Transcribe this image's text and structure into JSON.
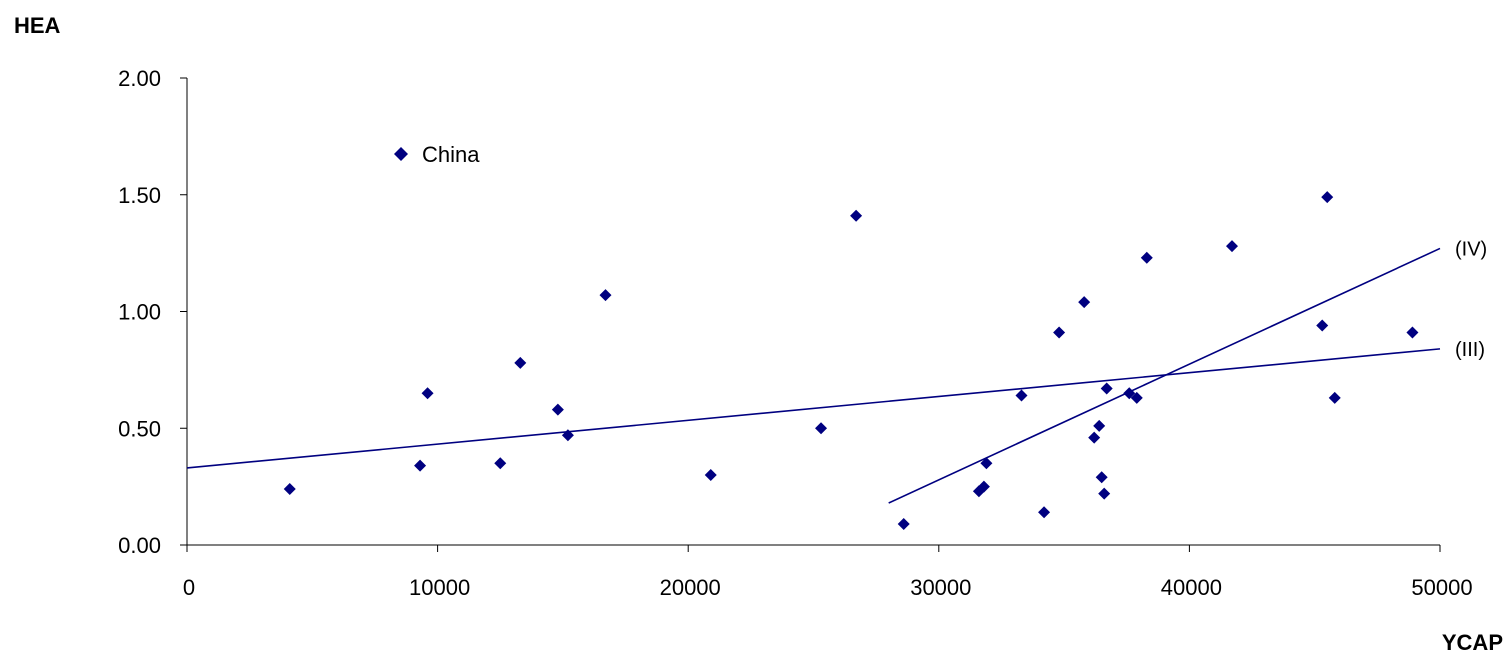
{
  "chart_data": {
    "type": "scatter",
    "xlabel": "YCAP",
    "ylabel": "HEA",
    "xlim": [
      0,
      50000
    ],
    "ylim": [
      0,
      2
    ],
    "x_ticks": [
      "0",
      "10000",
      "20000",
      "30000",
      "40000",
      "50000"
    ],
    "y_ticks": [
      "0.00",
      "0.50",
      "1.00",
      "1.50",
      "2.00"
    ],
    "grid": false,
    "legend_position": "top-left",
    "marker_color": "#000080",
    "series": [
      {
        "name": "China",
        "points": [
          {
            "x": 4100,
            "y": 0.24
          },
          {
            "x": 9300,
            "y": 0.34
          },
          {
            "x": 9600,
            "y": 0.65
          },
          {
            "x": 12500,
            "y": 0.35
          },
          {
            "x": 13300,
            "y": 0.78
          },
          {
            "x": 14800,
            "y": 0.58
          },
          {
            "x": 15200,
            "y": 0.47
          },
          {
            "x": 16700,
            "y": 1.07
          },
          {
            "x": 20900,
            "y": 0.3
          },
          {
            "x": 25300,
            "y": 0.5
          },
          {
            "x": 26700,
            "y": 1.41
          },
          {
            "x": 28600,
            "y": 0.09
          },
          {
            "x": 31600,
            "y": 0.23
          },
          {
            "x": 31800,
            "y": 0.25
          },
          {
            "x": 31900,
            "y": 0.35
          },
          {
            "x": 33300,
            "y": 0.64
          },
          {
            "x": 34200,
            "y": 0.14
          },
          {
            "x": 34800,
            "y": 0.91
          },
          {
            "x": 35800,
            "y": 1.04
          },
          {
            "x": 36200,
            "y": 0.46
          },
          {
            "x": 36400,
            "y": 0.51
          },
          {
            "x": 36500,
            "y": 0.29
          },
          {
            "x": 36600,
            "y": 0.22
          },
          {
            "x": 36700,
            "y": 0.67
          },
          {
            "x": 37600,
            "y": 0.65
          },
          {
            "x": 37900,
            "y": 0.63
          },
          {
            "x": 38300,
            "y": 1.23
          },
          {
            "x": 41700,
            "y": 1.28
          },
          {
            "x": 45300,
            "y": 0.94
          },
          {
            "x": 45500,
            "y": 1.49
          },
          {
            "x": 45800,
            "y": 0.63
          },
          {
            "x": 48900,
            "y": 0.91
          }
        ]
      }
    ],
    "trend_lines": [
      {
        "label": "(III)",
        "x_start": 0,
        "y_start": 0.33,
        "x_end": 50000,
        "y_end": 0.84
      },
      {
        "label": "(IV)",
        "x_start": 28000,
        "y_start": 0.18,
        "x_end": 50000,
        "y_end": 1.27
      }
    ]
  }
}
